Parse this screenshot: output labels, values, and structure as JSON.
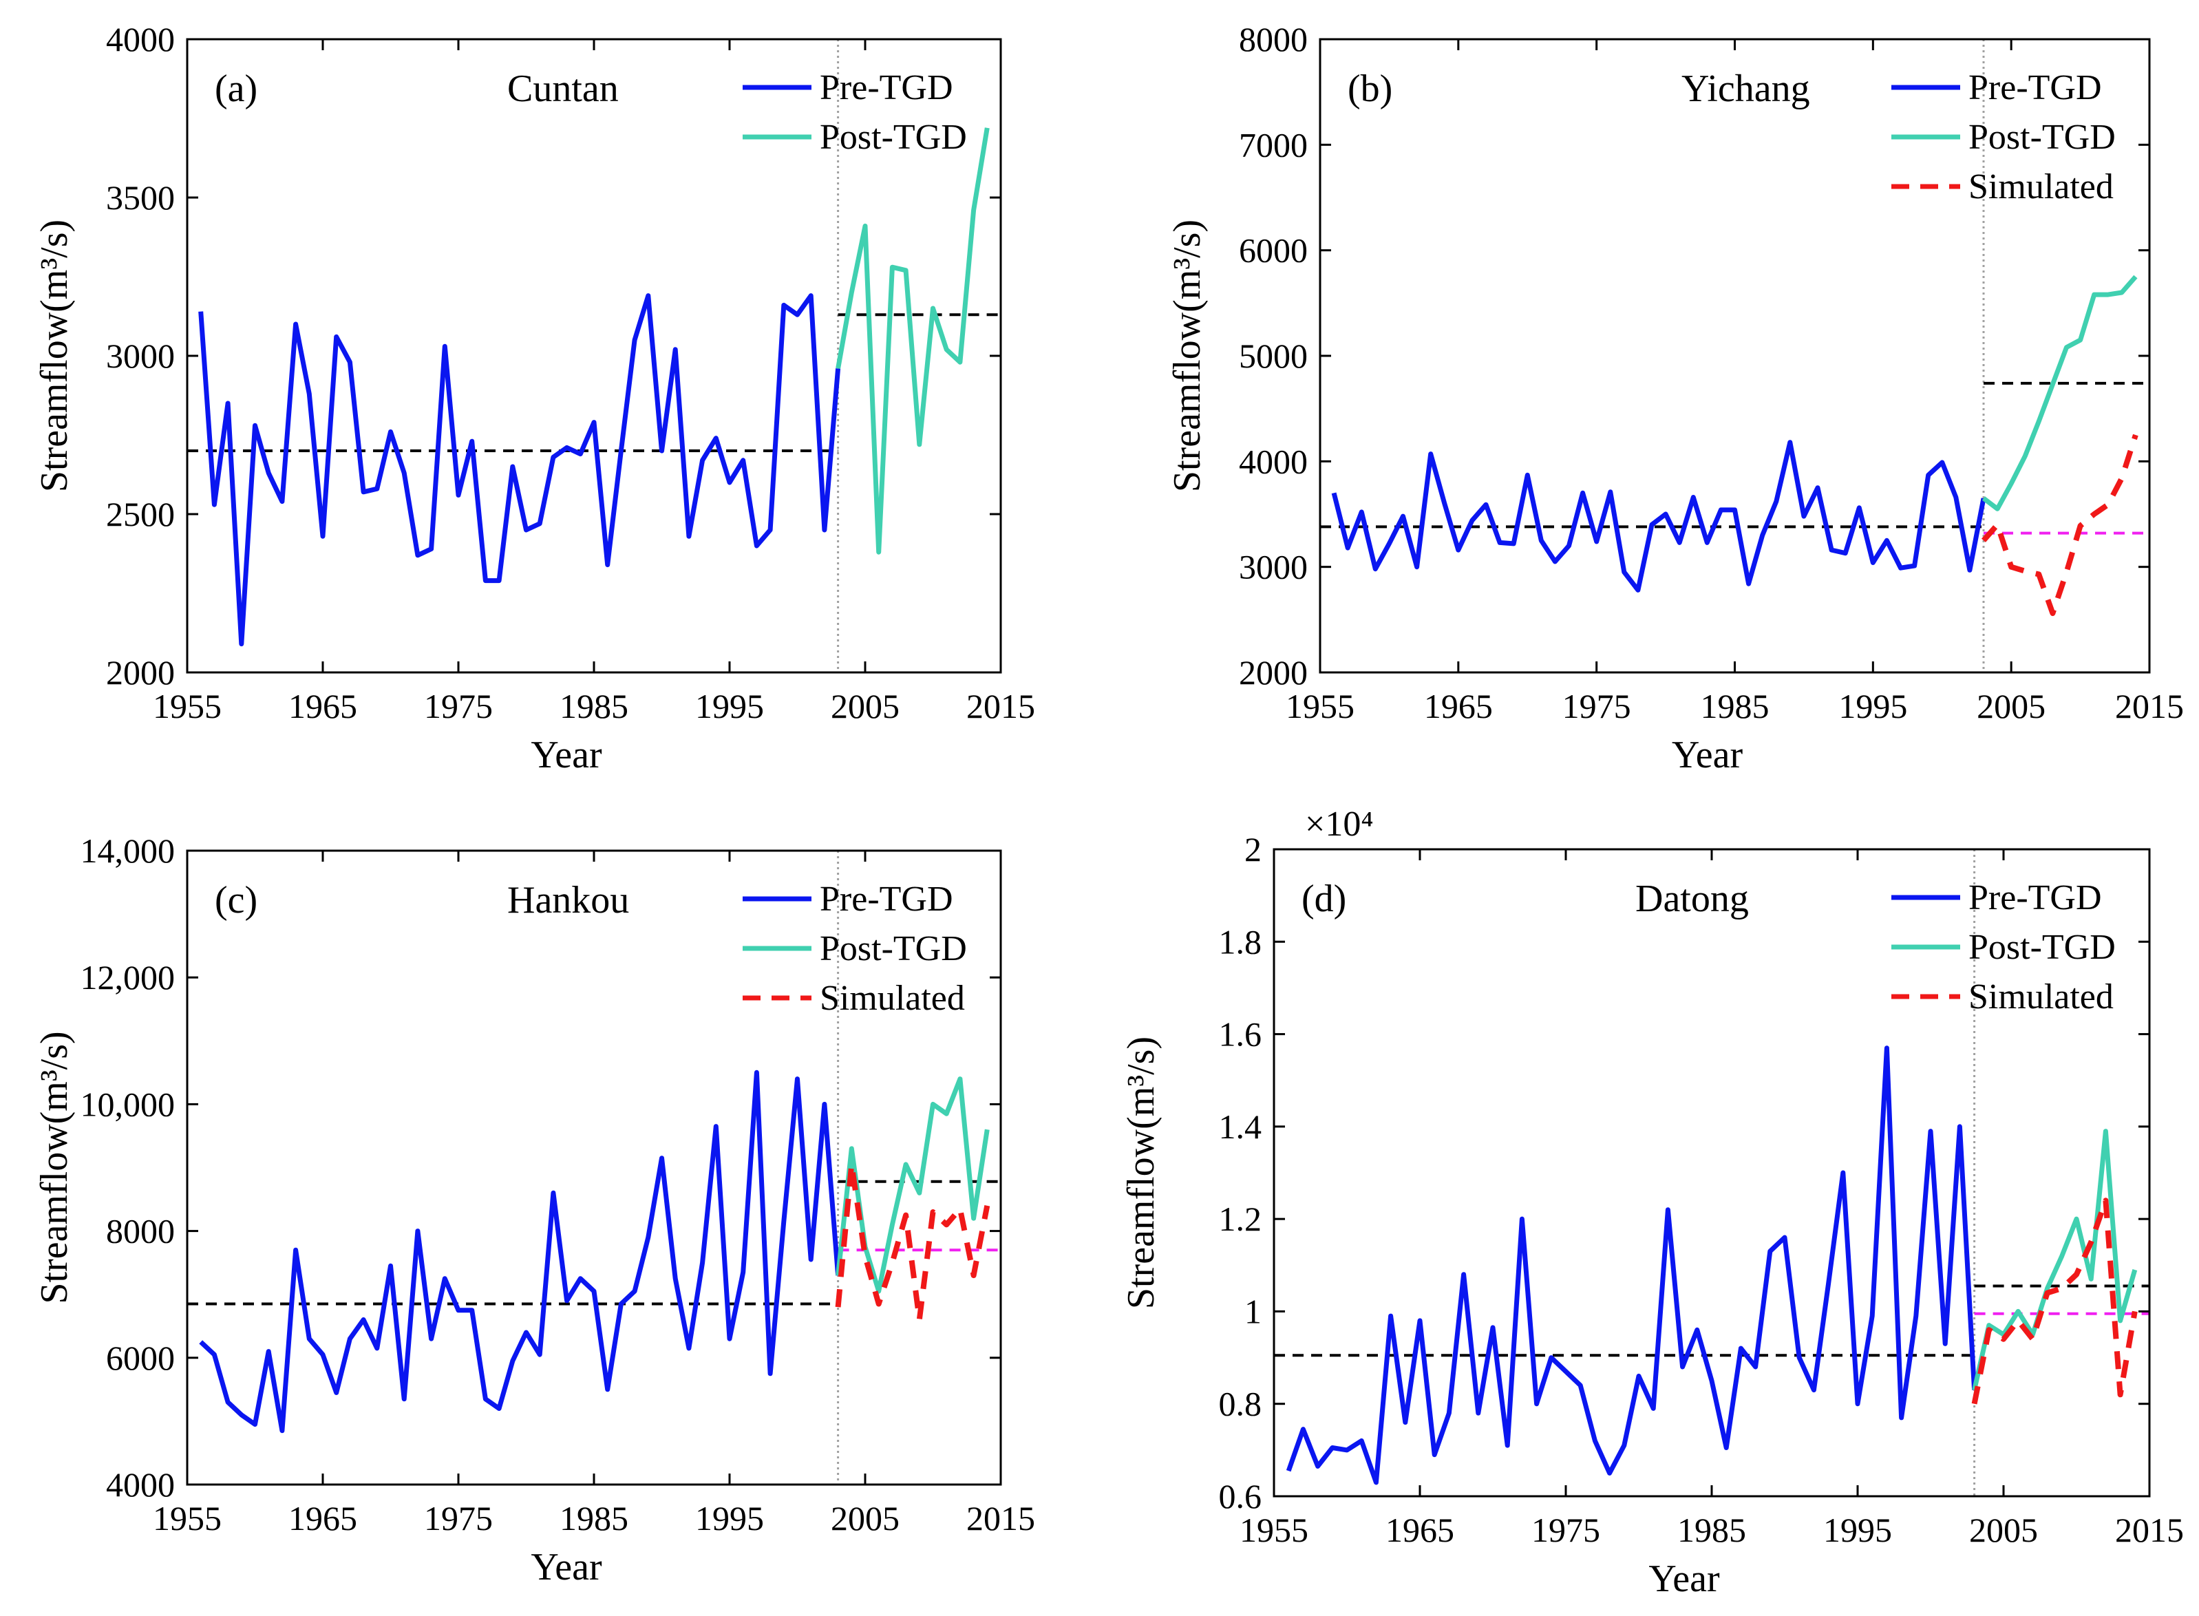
{
  "chart_data": [
    {
      "type": "line",
      "panel_label": "(a)",
      "station": "Cuntan",
      "xlabel": "Year",
      "ylabel": "Streamflow(m³/s)",
      "xlim": [
        1955,
        2015
      ],
      "ylim": [
        2000,
        4000
      ],
      "xticks": [
        1955,
        1965,
        1975,
        1985,
        1995,
        2005,
        2015
      ],
      "xtick_labels": [
        "1955",
        "1965",
        "1975",
        "1985",
        "1995",
        "2005",
        "2015"
      ],
      "yticks": [
        2000,
        2500,
        3000,
        3500,
        4000
      ],
      "ytick_labels": [
        "2000",
        "2500",
        "3000",
        "3500",
        "4000"
      ],
      "y_multiplier": "",
      "legend": [
        "Pre-TGD",
        "Post-TGD"
      ],
      "divider_year": 2003,
      "series": [
        {
          "name": "Pre-TGD",
          "color": "#0a16f0",
          "x": [
            1956,
            1957,
            1958,
            1959,
            1960,
            1961,
            1962,
            1963,
            1964,
            1965,
            1966,
            1967,
            1968,
            1969,
            1970,
            1971,
            1972,
            1973,
            1974,
            1975,
            1976,
            1977,
            1978,
            1979,
            1980,
            1981,
            1982,
            1983,
            1984,
            1985,
            1986,
            1987,
            1988,
            1989,
            1990,
            1991,
            1992,
            1993,
            1994,
            1995,
            1996,
            1997,
            1998,
            1999,
            2000,
            2001,
            2002,
            2003
          ],
          "y": [
            3140,
            2530,
            2850,
            2090,
            2780,
            2630,
            2540,
            3100,
            2880,
            2430,
            3060,
            2980,
            2570,
            2580,
            2760,
            2630,
            2370,
            2390,
            3030,
            2560,
            2730,
            2290,
            2290,
            2650,
            2450,
            2470,
            2680,
            2710,
            2690,
            2790,
            2340,
            2700,
            3050,
            3190,
            2700,
            3020,
            2430,
            2670,
            2740,
            2600,
            2670,
            2400,
            2450,
            3160,
            3130,
            3190,
            2450,
            2960
          ]
        },
        {
          "name": "Post-TGD",
          "color": "#40d0b0",
          "x": [
            2003,
            2004,
            2005,
            2006,
            2007,
            2008,
            2009,
            2010,
            2011,
            2012,
            2013,
            2014
          ],
          "y": [
            2960,
            3200,
            3410,
            2380,
            3280,
            3270,
            2720,
            3150,
            3020,
            2980,
            3460,
            3720
          ]
        }
      ],
      "reference_lines": [
        {
          "name": "Pre-TGD mean",
          "color": "#000000",
          "y": 2700,
          "x_range": [
            1955,
            2003
          ]
        },
        {
          "name": "Post-TGD mean",
          "color": "#000000",
          "y": 3130,
          "x_range": [
            2003,
            2015
          ]
        }
      ]
    },
    {
      "type": "line",
      "panel_label": "(b)",
      "station": "Yichang",
      "xlabel": "Year",
      "ylabel": "Streamflow(m³/s)",
      "xlim": [
        1955,
        2015
      ],
      "ylim": [
        2000,
        8000
      ],
      "xticks": [
        1955,
        1965,
        1975,
        1985,
        1995,
        2005,
        2015
      ],
      "xtick_labels": [
        "1955",
        "1965",
        "1975",
        "1985",
        "1995",
        "2005",
        "2015"
      ],
      "yticks": [
        2000,
        3000,
        4000,
        5000,
        6000,
        7000,
        8000
      ],
      "ytick_labels": [
        "2000",
        "3000",
        "4000",
        "5000",
        "6000",
        "7000",
        "8000"
      ],
      "y_multiplier": "",
      "legend": [
        "Pre-TGD",
        "Post-TGD",
        "Simulated"
      ],
      "divider_year": 2003,
      "series": [
        {
          "name": "Pre-TGD",
          "color": "#0a16f0",
          "x": [
            1956,
            1957,
            1958,
            1959,
            1960,
            1961,
            1962,
            1963,
            1964,
            1965,
            1966,
            1967,
            1968,
            1969,
            1970,
            1971,
            1972,
            1973,
            1974,
            1975,
            1976,
            1977,
            1978,
            1979,
            1980,
            1981,
            1982,
            1983,
            1984,
            1985,
            1986,
            1987,
            1988,
            1989,
            1990,
            1991,
            1992,
            1993,
            1994,
            1995,
            1996,
            1997,
            1998,
            1999,
            2000,
            2001,
            2002,
            2003
          ],
          "y": [
            3700,
            3180,
            3520,
            2980,
            3220,
            3480,
            3000,
            4070,
            3600,
            3160,
            3440,
            3590,
            3230,
            3220,
            3870,
            3250,
            3050,
            3200,
            3700,
            3240,
            3710,
            2950,
            2780,
            3400,
            3500,
            3230,
            3660,
            3230,
            3540,
            3540,
            2840,
            3300,
            3620,
            4180,
            3480,
            3750,
            3160,
            3130,
            3560,
            3040,
            3250,
            2990,
            3010,
            3870,
            3990,
            3660,
            2970,
            3650
          ]
        },
        {
          "name": "Post-TGD",
          "color": "#40d0b0",
          "x": [
            2003,
            2004,
            2005,
            2006,
            2007,
            2008,
            2009,
            2010,
            2011,
            2012,
            2013,
            2014
          ],
          "y": [
            3650,
            3550,
            3790,
            4050,
            4380,
            4730,
            5080,
            5150,
            5580,
            5580,
            5600,
            5750
          ]
        },
        {
          "name": "Simulated",
          "color": "#f01818",
          "dashed": true,
          "x": [
            2003,
            2004,
            2005,
            2006,
            2007,
            2008,
            2009,
            2010,
            2011,
            2012,
            2013,
            2014
          ],
          "y": [
            3250,
            3400,
            3000,
            2960,
            2930,
            2560,
            2950,
            3390,
            3500,
            3590,
            3840,
            4250
          ]
        }
      ],
      "reference_lines": [
        {
          "name": "Pre-TGD mean",
          "color": "#000000",
          "y": 3380,
          "x_range": [
            1955,
            2003
          ]
        },
        {
          "name": "Post-TGD mean",
          "color": "#000000",
          "y": 4740,
          "x_range": [
            2003,
            2015
          ]
        },
        {
          "name": "Simulated mean",
          "color": "#f020f0",
          "y": 3320,
          "x_range": [
            2003,
            2015
          ]
        }
      ]
    },
    {
      "type": "line",
      "panel_label": "(c)",
      "station": "Hankou",
      "xlabel": "Year",
      "ylabel": "Streamflow(m³/s)",
      "xlim": [
        1955,
        2015
      ],
      "ylim": [
        4000,
        14000
      ],
      "xticks": [
        1955,
        1965,
        1975,
        1985,
        1995,
        2005,
        2015
      ],
      "xtick_labels": [
        "1955",
        "1965",
        "1975",
        "1985",
        "1995",
        "2005",
        "2015"
      ],
      "yticks": [
        4000,
        6000,
        8000,
        10000,
        12000,
        14000
      ],
      "ytick_labels": [
        "4000",
        "6000",
        "8000",
        "10,000",
        "12,000",
        "14,000"
      ],
      "y_multiplier": "",
      "legend": [
        "Pre-TGD",
        "Post-TGD",
        "Simulated"
      ],
      "divider_year": 2003,
      "series": [
        {
          "name": "Pre-TGD",
          "color": "#0a16f0",
          "x": [
            1956,
            1957,
            1958,
            1959,
            1960,
            1961,
            1962,
            1963,
            1964,
            1965,
            1966,
            1967,
            1968,
            1969,
            1970,
            1971,
            1972,
            1973,
            1974,
            1975,
            1976,
            1977,
            1978,
            1979,
            1980,
            1981,
            1982,
            1983,
            1984,
            1985,
            1986,
            1987,
            1988,
            1989,
            1990,
            1991,
            1992,
            1993,
            1994,
            1995,
            1996,
            1997,
            1998,
            1999,
            2000,
            2001,
            2002,
            2003
          ],
          "y": [
            6250,
            6050,
            5300,
            5100,
            4950,
            6100,
            4850,
            7700,
            6300,
            6050,
            5450,
            6300,
            6600,
            6150,
            7450,
            5350,
            8000,
            6300,
            7250,
            6750,
            6750,
            5350,
            5200,
            5950,
            6400,
            6050,
            8600,
            6900,
            7250,
            7050,
            5500,
            6850,
            7050,
            7900,
            9150,
            7250,
            6150,
            7500,
            9650,
            6300,
            7350,
            10500,
            5750,
            8150,
            10400,
            7550,
            10000,
            7300
          ]
        },
        {
          "name": "Post-TGD",
          "color": "#40d0b0",
          "x": [
            2003,
            2004,
            2005,
            2006,
            2007,
            2008,
            2009,
            2010,
            2011,
            2012,
            2013,
            2014
          ],
          "y": [
            7300,
            9300,
            7750,
            7050,
            8100,
            9050,
            8600,
            10000,
            9850,
            10400,
            8200,
            9600
          ]
        },
        {
          "name": "Simulated",
          "color": "#f01818",
          "dashed": true,
          "x": [
            2003,
            2004,
            2005,
            2006,
            2007,
            2008,
            2009,
            2010,
            2011,
            2012,
            2013,
            2014
          ],
          "y": [
            6800,
            9050,
            7600,
            6850,
            7500,
            8250,
            6600,
            8300,
            8100,
            8350,
            7300,
            8400
          ]
        }
      ],
      "reference_lines": [
        {
          "name": "Pre-TGD mean",
          "color": "#000000",
          "y": 6850,
          "x_range": [
            1955,
            2003
          ]
        },
        {
          "name": "Post-TGD mean",
          "color": "#000000",
          "y": 8780,
          "x_range": [
            2003,
            2015
          ]
        },
        {
          "name": "Simulated mean",
          "color": "#f020f0",
          "y": 7700,
          "x_range": [
            2003,
            2015
          ]
        }
      ]
    },
    {
      "type": "line",
      "panel_label": "(d)",
      "station": "Datong",
      "xlabel": "Year",
      "ylabel": "Streamflow(m³/s)",
      "xlim": [
        1955,
        2015
      ],
      "ylim": [
        0.6,
        2.0
      ],
      "xticks": [
        1955,
        1965,
        1975,
        1985,
        1995,
        2005,
        2015
      ],
      "xtick_labels": [
        "1955",
        "1965",
        "1975",
        "1985",
        "1995",
        "2005",
        "2015"
      ],
      "yticks": [
        0.6,
        0.8,
        1.0,
        1.2,
        1.4,
        1.6,
        1.8,
        2.0
      ],
      "ytick_labels": [
        "0.6",
        "0.8",
        "1",
        "1.2",
        "1.4",
        "1.6",
        "1.8",
        "2"
      ],
      "y_multiplier": "×10⁴",
      "legend": [
        "Pre-TGD",
        "Post-TGD",
        "Simulated"
      ],
      "divider_year": 2003,
      "series": [
        {
          "name": "Pre-TGD",
          "color": "#0a16f0",
          "x": [
            1956,
            1957,
            1958,
            1959,
            1960,
            1961,
            1962,
            1963,
            1964,
            1965,
            1966,
            1967,
            1968,
            1969,
            1970,
            1971,
            1972,
            1973,
            1974,
            1975,
            1976,
            1977,
            1978,
            1979,
            1980,
            1981,
            1982,
            1983,
            1984,
            1985,
            1986,
            1987,
            1988,
            1989,
            1990,
            1991,
            1992,
            1993,
            1994,
            1995,
            1996,
            1997,
            1998,
            1999,
            2000,
            2001,
            2002,
            2003
          ],
          "y": [
            0.655,
            0.745,
            0.665,
            0.705,
            0.7,
            0.72,
            0.63,
            0.99,
            0.76,
            0.98,
            0.69,
            0.78,
            1.08,
            0.78,
            0.965,
            0.71,
            1.2,
            0.8,
            0.9,
            0.87,
            0.84,
            0.72,
            0.65,
            0.71,
            0.86,
            0.79,
            1.22,
            0.88,
            0.96,
            0.85,
            0.705,
            0.92,
            0.88,
            1.13,
            1.16,
            0.9,
            0.83,
            1.06,
            1.3,
            0.8,
            0.99,
            1.57,
            0.77,
            0.99,
            1.39,
            0.93,
            1.4,
            0.83
          ]
        },
        {
          "name": "Post-TGD",
          "color": "#40d0b0",
          "x": [
            2003,
            2004,
            2005,
            2006,
            2007,
            2008,
            2009,
            2010,
            2011,
            2012,
            2013,
            2014
          ],
          "y": [
            0.83,
            0.97,
            0.95,
            1.0,
            0.95,
            1.05,
            1.12,
            1.2,
            1.07,
            1.39,
            0.98,
            1.09
          ]
        },
        {
          "name": "Simulated",
          "color": "#f01818",
          "dashed": true,
          "x": [
            2003,
            2004,
            2005,
            2006,
            2007,
            2008,
            2009,
            2010,
            2011,
            2012,
            2013,
            2014
          ],
          "y": [
            0.8,
            0.96,
            0.94,
            0.98,
            0.94,
            1.04,
            1.05,
            1.08,
            1.15,
            1.24,
            0.82,
            1.0
          ]
        }
      ],
      "reference_lines": [
        {
          "name": "Pre-TGD mean",
          "color": "#000000",
          "y": 0.905,
          "x_range": [
            1955,
            2003
          ]
        },
        {
          "name": "Post-TGD mean",
          "color": "#000000",
          "y": 1.055,
          "x_range": [
            2003,
            2015
          ]
        },
        {
          "name": "Simulated mean",
          "color": "#f020f0",
          "y": 0.995,
          "x_range": [
            2003,
            2015
          ]
        }
      ]
    }
  ]
}
